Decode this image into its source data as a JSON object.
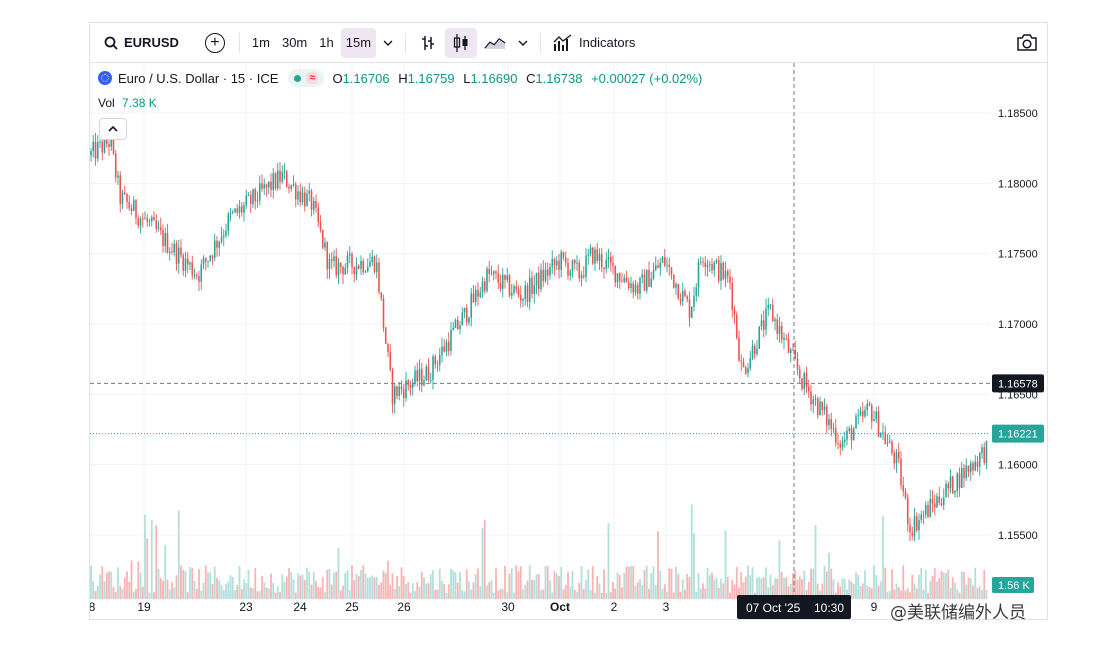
{
  "toolbar": {
    "symbol": "EURUSD",
    "timeframes": [
      "1m",
      "30m",
      "1h",
      "15m"
    ],
    "active_timeframe": "15m",
    "indicators_label": "Indicators",
    "icons": [
      "search-icon",
      "plus-circle-icon",
      "chevron-down-icon",
      "bar-chart-icon",
      "candles-icon",
      "area-chart-icon",
      "indicators-icon",
      "camera-icon"
    ]
  },
  "legend": {
    "title": "Euro / U.S. Dollar · 15 · ICE",
    "o_key": "O",
    "o_val": "1.16706",
    "h_key": "H",
    "h_val": "1.16759",
    "l_key": "L",
    "l_val": "1.16690",
    "c_key": "C",
    "c_val": "1.16738",
    "change": "+0.00027 (+0.02%)",
    "vol_label": "Vol",
    "vol_value": "7.38 K"
  },
  "watermark": "@美联储编外人员",
  "chart_data": {
    "type": "candlestick",
    "symbol": "EURUSD",
    "interval": "15",
    "ylim": [
      1.1507,
      1.1868
    ],
    "y_ticks": [
      "1.18500",
      "1.18000",
      "1.17500",
      "1.17000",
      "1.16500",
      "1.16000",
      "1.15500"
    ],
    "x_ticks": [
      "8",
      "19",
      "23",
      "24",
      "25",
      "26",
      "30",
      "Oct",
      "2",
      "3",
      "9"
    ],
    "price_path": {
      "x": [
        "Sep 18",
        "Sep 18",
        "Sep 19",
        "Sep 19",
        "Sep 22",
        "Sep 23",
        "Sep 23",
        "Sep 24",
        "Sep 25",
        "Sep 25",
        "Sep 26",
        "Sep 26",
        "Sep 29",
        "Sep 30",
        "Sep 30",
        "Oct 1",
        "Oct 1",
        "Oct 2",
        "Oct 2",
        "Oct 3",
        "Oct 3",
        "Oct 6",
        "Oct 6",
        "Oct 7",
        "Oct 7",
        "Oct 8",
        "Oct 8",
        "Oct 9",
        "Oct 9",
        "Oct 10",
        "Oct 10"
      ],
      "close": [
        1.182,
        1.183,
        1.179,
        1.177,
        1.1735,
        1.1775,
        1.1805,
        1.1785,
        1.174,
        1.1745,
        1.165,
        1.1665,
        1.171,
        1.1735,
        1.172,
        1.1745,
        1.1735,
        1.175,
        1.1725,
        1.1745,
        1.171,
        1.175,
        1.173,
        1.1665,
        1.171,
        1.166,
        1.1615,
        1.164,
        1.16,
        1.1555,
        1.1612
      ]
    },
    "crosshair": {
      "price_label": "1.16578",
      "date_label": "07 Oct '25",
      "time_label": "10:30"
    },
    "last_price_label": "1.16221",
    "last_volume_label": "1.56 K",
    "colors": {
      "up": "#26a69a",
      "down": "#ef5350",
      "vol_up": "#b2dfdb",
      "vol_down": "#f7b4b2"
    }
  }
}
